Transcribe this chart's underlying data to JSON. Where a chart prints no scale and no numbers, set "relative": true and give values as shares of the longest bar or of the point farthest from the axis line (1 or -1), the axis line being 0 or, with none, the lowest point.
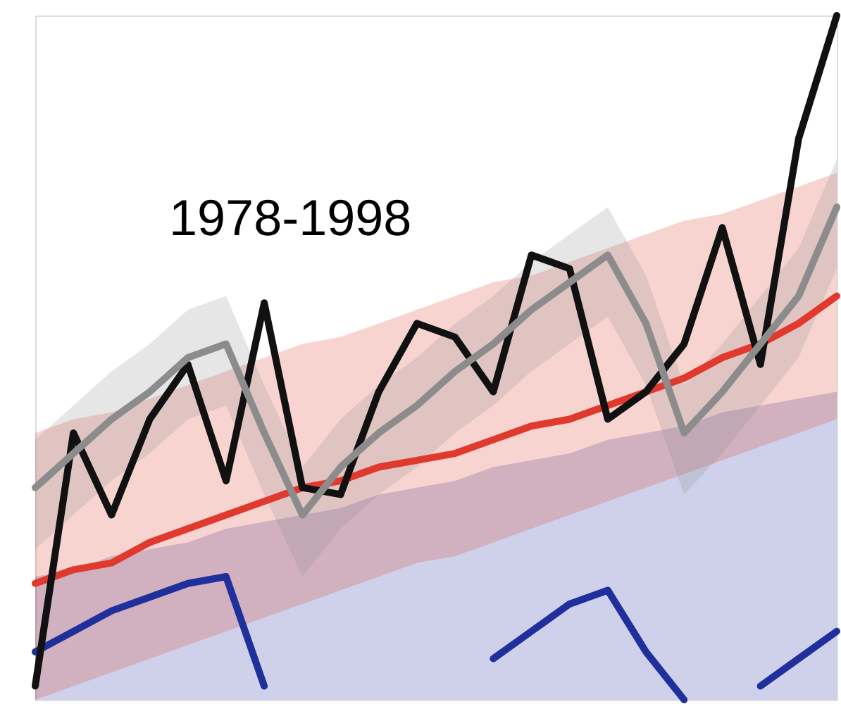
{
  "chart_data": {
    "type": "line",
    "relative": true,
    "line_style": "solid",
    "marker": "none",
    "annotations": [
      "1978-1998"
    ],
    "categories": [
      null,
      null,
      null,
      null,
      null,
      null,
      null,
      null,
      null,
      null,
      null,
      null,
      null,
      null,
      null,
      null,
      null,
      null,
      null,
      null,
      null,
      null
    ],
    "series": [
      {
        "color": "#1f2f9c",
        "values": [
          0.07,
          0.1,
          0.13,
          0.15,
          0.17,
          0.18,
          0.02,
          null,
          null,
          null,
          null,
          null,
          0.06,
          0.1,
          0.14,
          0.16,
          0.07,
          0.0,
          null,
          0.02,
          0.06,
          0.1
        ],
        "upper": [
          0.18,
          0.19,
          0.21,
          0.22,
          0.23,
          0.25,
          0.26,
          0.27,
          0.28,
          0.3,
          0.31,
          0.32,
          0.34,
          0.35,
          0.36,
          0.38,
          0.39,
          0.4,
          0.42,
          0.43,
          0.44,
          0.45
        ],
        "lower": [
          0,
          0,
          0,
          0,
          0,
          0,
          0,
          0,
          0,
          0,
          0,
          0,
          0,
          0,
          0,
          0,
          0,
          0,
          0,
          0,
          0,
          0
        ]
      },
      {
        "color": "#e03a2f",
        "values": [
          0.17,
          0.19,
          0.2,
          0.23,
          0.25,
          0.27,
          0.29,
          0.31,
          0.32,
          0.34,
          0.35,
          0.36,
          0.38,
          0.4,
          0.41,
          0.43,
          0.45,
          0.47,
          0.5,
          0.52,
          0.55,
          0.59
        ],
        "upper": [
          0.39,
          0.41,
          0.42,
          0.44,
          0.46,
          0.48,
          0.5,
          0.52,
          0.53,
          0.55,
          0.57,
          0.59,
          0.61,
          0.62,
          0.64,
          0.66,
          0.68,
          0.7,
          0.71,
          0.73,
          0.75,
          0.77
        ],
        "lower": [
          0,
          0.02,
          0.04,
          0.06,
          0.08,
          0.1,
          0.12,
          0.14,
          0.16,
          0.18,
          0.2,
          0.21,
          0.23,
          0.25,
          0.27,
          0.29,
          0.31,
          0.33,
          0.35,
          0.37,
          0.39,
          0.41
        ]
      },
      {
        "color": "#111111",
        "values": [
          0.02,
          0.39,
          0.27,
          0.41,
          0.49,
          0.32,
          0.58,
          0.31,
          0.3,
          0.45,
          0.55,
          0.53,
          0.45,
          0.65,
          0.63,
          0.41,
          0.45,
          0.52,
          0.69,
          0.49,
          0.82,
          1
        ]
      },
      {
        "color": "#8c8c8c",
        "values": [
          0.31,
          0.36,
          0.41,
          0.45,
          0.5,
          0.52,
          0.39,
          0.27,
          0.34,
          0.39,
          0.43,
          0.48,
          0.52,
          0.57,
          0.61,
          0.65,
          0.55,
          0.39,
          0.45,
          0.52,
          0.59,
          0.72
        ],
        "upper": [
          0.38,
          0.43,
          0.48,
          0.52,
          0.57,
          0.59,
          0.46,
          0.34,
          0.41,
          0.46,
          0.5,
          0.55,
          0.59,
          0.64,
          0.68,
          0.72,
          0.62,
          0.46,
          0.52,
          0.59,
          0.66,
          0.79
        ],
        "lower": [
          0.22,
          0.27,
          0.32,
          0.36,
          0.41,
          0.43,
          0.3,
          0.18,
          0.25,
          0.3,
          0.34,
          0.39,
          0.43,
          0.48,
          0.52,
          0.56,
          0.46,
          0.3,
          0.36,
          0.43,
          0.5,
          0.63
        ]
      }
    ]
  }
}
